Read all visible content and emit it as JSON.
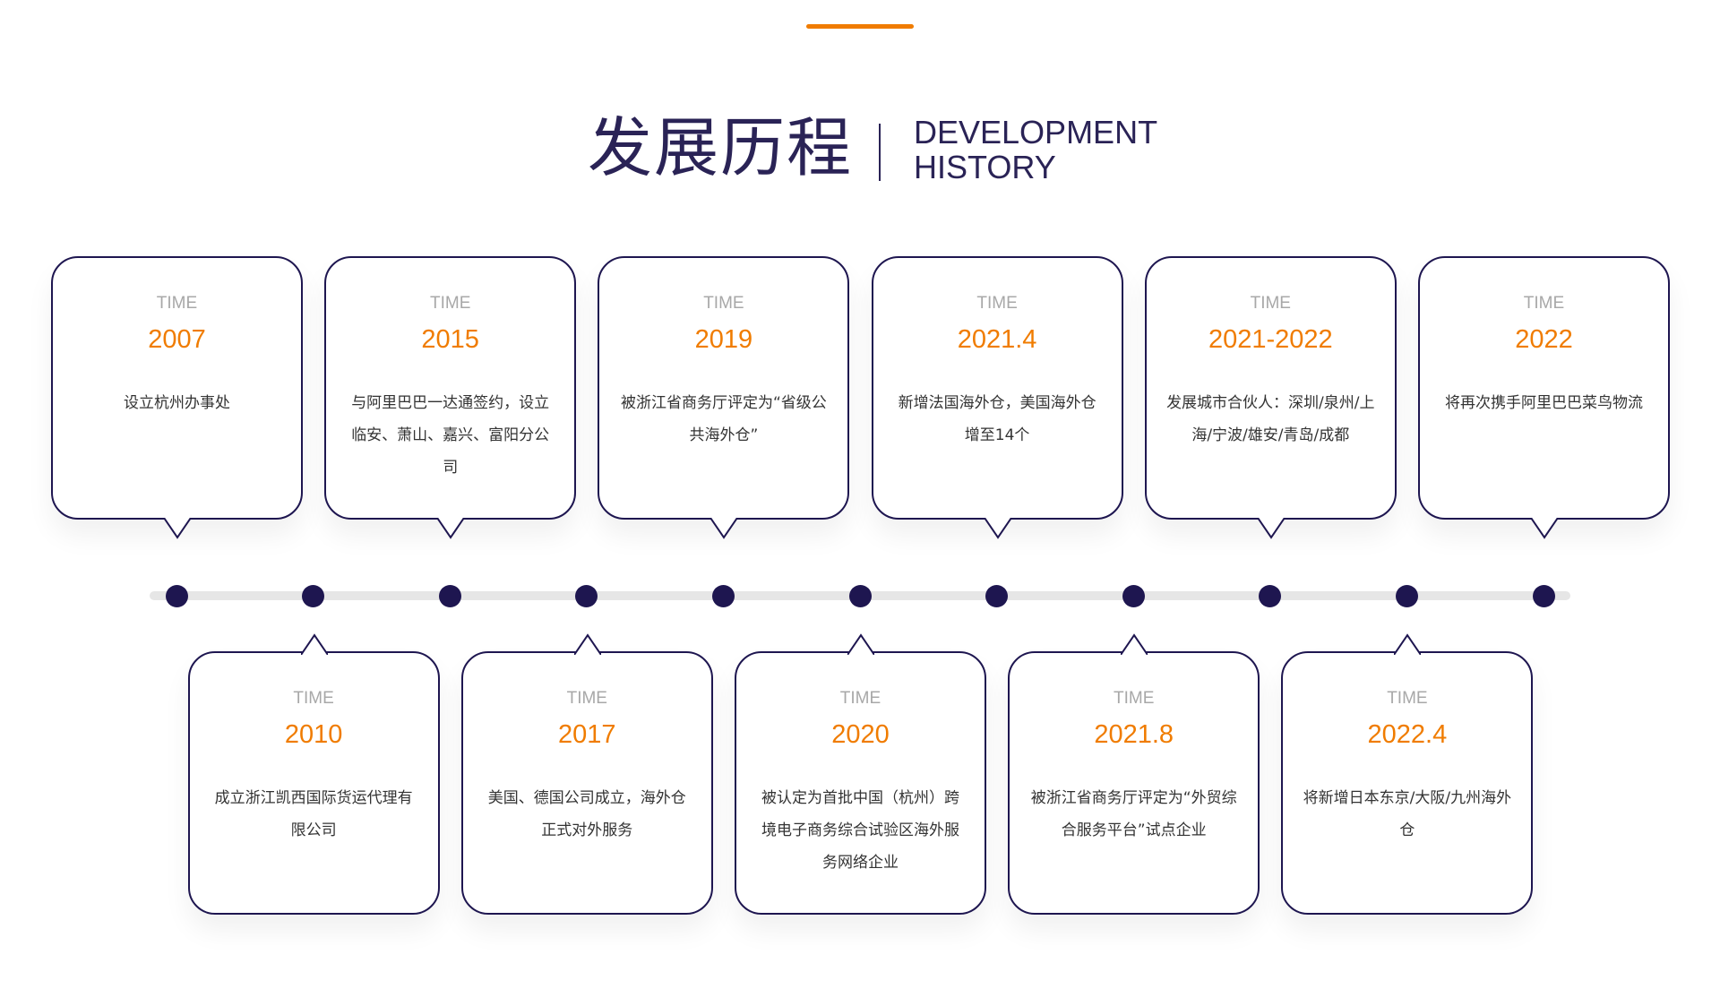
{
  "header": {
    "title_cn": "发展历程",
    "title_en_line1": "DEVELOPMENT",
    "title_en_line2": "HISTORY"
  },
  "colors": {
    "accent": "#f07c00",
    "navy": "#1e1650",
    "track": "#e6e6e6"
  },
  "time_label": "TIME",
  "events": [
    {
      "year": "2007",
      "desc": "设立杭州办事处"
    },
    {
      "year": "2010",
      "desc": "成立浙江凯西国际货运代理有限公司"
    },
    {
      "year": "2015",
      "desc": "与阿里巴巴一达通签约，设立临安、萧山、嘉兴、富阳分公司"
    },
    {
      "year": "2017",
      "desc": "美国、德国公司成立，海外仓正式对外服务"
    },
    {
      "year": "2019",
      "desc": "被浙江省商务厅评定为“省级公共海外仓”"
    },
    {
      "year": "2020",
      "desc": "被认定为首批中国（杭州）跨境电子商务综合试验区海外服务网络企业"
    },
    {
      "year": "2021.4",
      "desc": "新增法国海外仓，美国海外仓增至14个"
    },
    {
      "year": "2021.8",
      "desc": "被浙江省商务厅评定为“外贸综合服务平台”试点企业"
    },
    {
      "year": "2021-2022",
      "desc": "发展城市合伙人：深圳/泉州/上海/宁波/雄安/青岛/成都"
    },
    {
      "year": "2022.4",
      "desc": "将新增日本东京/大阪/九州海外仓"
    },
    {
      "year": "2022",
      "desc": "将再次携手阿里巴巴菜鸟物流"
    }
  ]
}
